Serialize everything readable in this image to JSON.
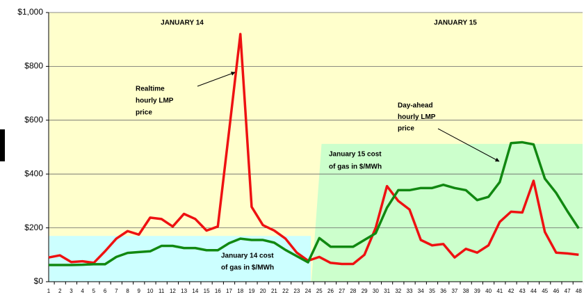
{
  "chart_data": {
    "type": "line",
    "day_labels": [
      "JANUARY 14",
      "JANUARY 15"
    ],
    "categories": [
      1,
      2,
      3,
      4,
      5,
      6,
      7,
      8,
      9,
      10,
      11,
      12,
      13,
      14,
      15,
      16,
      17,
      18,
      19,
      20,
      21,
      22,
      23,
      24,
      25,
      26,
      27,
      28,
      29,
      30,
      31,
      32,
      33,
      34,
      35,
      36,
      37,
      38,
      39,
      40,
      41,
      42,
      43,
      44,
      45,
      46,
      47,
      48
    ],
    "series": [
      {
        "label_lines": [
          "Realtime",
          "hourly LMP",
          "price"
        ],
        "color": "#ee1111",
        "values": [
          90,
          98,
          73,
          76,
          70,
          113,
          160,
          188,
          175,
          238,
          233,
          205,
          252,
          233,
          190,
          205,
          560,
          920,
          278,
          210,
          190,
          160,
          108,
          78,
          92,
          70,
          66,
          66,
          100,
          200,
          355,
          300,
          268,
          155,
          135,
          140,
          90,
          122,
          108,
          135,
          222,
          260,
          257,
          375,
          185,
          108,
          105,
          100
        ]
      },
      {
        "label_lines": [
          "Day-ahead",
          "hourly LMP",
          "price"
        ],
        "color": "#118811",
        "values": [
          62,
          62,
          62,
          63,
          65,
          65,
          92,
          107,
          110,
          113,
          133,
          133,
          125,
          125,
          117,
          117,
          143,
          160,
          155,
          155,
          145,
          118,
          95,
          72,
          162,
          130,
          130,
          130,
          155,
          180,
          275,
          340,
          340,
          348,
          348,
          360,
          348,
          340,
          303,
          315,
          370,
          515,
          518,
          510,
          383,
          330,
          262,
          198
        ]
      }
    ],
    "gas_costs": [
      {
        "label_lines": [
          "January 14 cost",
          "of gas in $/MWh"
        ],
        "value": 170,
        "color": "#ccffff"
      },
      {
        "label_lines": [
          "January 15 cost",
          "of gas in $/MWh"
        ],
        "value": 512,
        "color": "#ccffcc"
      }
    ],
    "ylim": [
      0,
      1000
    ],
    "yticks": [
      {
        "value": 0,
        "label": "$0"
      },
      {
        "value": 200,
        "label": "$200"
      },
      {
        "value": 400,
        "label": "$400"
      },
      {
        "value": 600,
        "label": "$600"
      },
      {
        "value": 800,
        "label": "$800"
      },
      {
        "value": 1000,
        "label": "$1,000"
      }
    ],
    "grid": true,
    "background": "#ffffcc"
  }
}
